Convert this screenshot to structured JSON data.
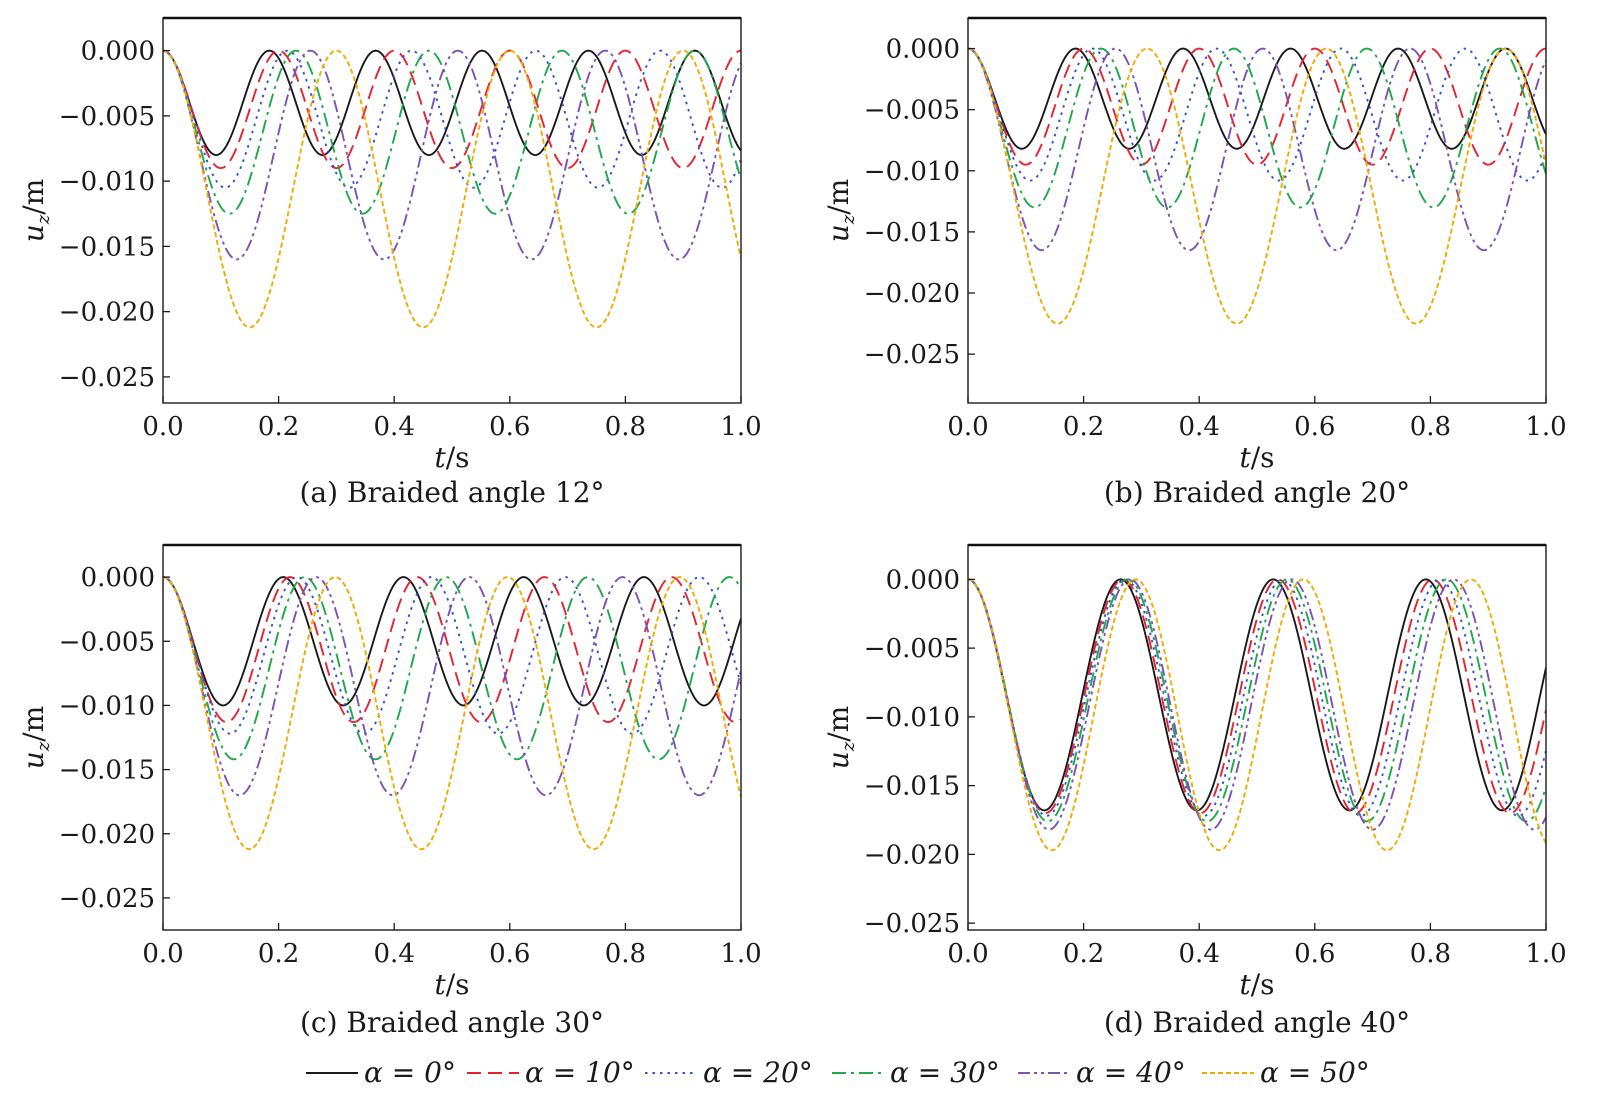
{
  "figure": {
    "legend": {
      "entries": [
        {
          "label": "α = 0°",
          "color": "#1a1a1a",
          "dash": "solid"
        },
        {
          "label": "α = 10°",
          "color": "#e8212f",
          "dash": "dashed"
        },
        {
          "label": "α = 20°",
          "color": "#2f4fd6",
          "dash": "dotted"
        },
        {
          "label": "α = 30°",
          "color": "#1ea84a",
          "dash": "dashdot"
        },
        {
          "label": "α = 40°",
          "color": "#7a52b8",
          "dash": "dashdotdot"
        },
        {
          "label": "α = 50°",
          "color": "#f2a900",
          "dash": "finedash"
        }
      ]
    }
  },
  "chart_data": [
    {
      "type": "line",
      "caption": "(a) Braided angle 12°",
      "xlabel": "t/s",
      "ylabel": "uz/m",
      "ylabel_main": "u",
      "ylabel_sub": "z",
      "ylabel_unit": "/m",
      "xlim": [
        0,
        1
      ],
      "ylim": [
        -0.027,
        0.0025
      ],
      "xticks": [
        "0.0",
        "0.2",
        "0.4",
        "0.6",
        "0.8",
        "1.0"
      ],
      "xtick_values": [
        0,
        0.2,
        0.4,
        0.6,
        0.8,
        1.0
      ],
      "yticks": [
        "0.000",
        "−0.005",
        "−0.010",
        "−0.015",
        "−0.020",
        "−0.025"
      ],
      "ytick_values": [
        0,
        -0.005,
        -0.01,
        -0.015,
        -0.02,
        -0.025
      ],
      "grid": false,
      "series": [
        {
          "name": "α = 0°",
          "amplitude": 0.008,
          "period": 0.184,
          "color": "#1a1a1a"
        },
        {
          "name": "α = 10°",
          "amplitude": 0.009,
          "period": 0.2,
          "color": "#e8212f"
        },
        {
          "name": "α = 20°",
          "amplitude": 0.0105,
          "period": 0.215,
          "color": "#2f4fd6"
        },
        {
          "name": "α = 30°",
          "amplitude": 0.0125,
          "period": 0.23,
          "color": "#1ea84a"
        },
        {
          "name": "α = 40°",
          "amplitude": 0.016,
          "period": 0.255,
          "color": "#7a52b8"
        },
        {
          "name": "α = 50°",
          "amplitude": 0.0212,
          "period": 0.3,
          "color": "#f2a900"
        }
      ]
    },
    {
      "type": "line",
      "caption": "(b) Braided angle 20°",
      "xlabel": "t/s",
      "ylabel": "uz/m",
      "ylabel_main": "u",
      "ylabel_sub": "z",
      "ylabel_unit": "/m",
      "xlim": [
        0,
        1
      ],
      "ylim": [
        -0.029,
        0.0025
      ],
      "xticks": [
        "0.0",
        "0.2",
        "0.4",
        "0.6",
        "0.8",
        "1.0"
      ],
      "xtick_values": [
        0,
        0.2,
        0.4,
        0.6,
        0.8,
        1.0
      ],
      "yticks": [
        "0.000",
        "−0.005",
        "−0.010",
        "−0.015",
        "−0.020",
        "−0.025"
      ],
      "ytick_values": [
        0,
        -0.005,
        -0.01,
        -0.015,
        -0.02,
        -0.025
      ],
      "grid": false,
      "series": [
        {
          "name": "α = 0°",
          "amplitude": 0.0082,
          "period": 0.186,
          "color": "#1a1a1a"
        },
        {
          "name": "α = 10°",
          "amplitude": 0.0095,
          "period": 0.2,
          "color": "#e8212f"
        },
        {
          "name": "α = 20°",
          "amplitude": 0.0108,
          "period": 0.215,
          "color": "#2f4fd6"
        },
        {
          "name": "α = 30°",
          "amplitude": 0.013,
          "period": 0.23,
          "color": "#1ea84a"
        },
        {
          "name": "α = 40°",
          "amplitude": 0.0165,
          "period": 0.255,
          "color": "#7a52b8"
        },
        {
          "name": "α = 50°",
          "amplitude": 0.0225,
          "period": 0.31,
          "color": "#f2a900"
        }
      ]
    },
    {
      "type": "line",
      "caption": "(c) Braided angle 30°",
      "xlabel": "t/s",
      "ylabel": "uz/m",
      "ylabel_main": "u",
      "ylabel_sub": "z",
      "ylabel_unit": "/m",
      "xlim": [
        0,
        1
      ],
      "ylim": [
        -0.0275,
        0.0025
      ],
      "xticks": [
        "0.0",
        "0.2",
        "0.4",
        "0.6",
        "0.8",
        "1.0"
      ],
      "xtick_values": [
        0,
        0.2,
        0.4,
        0.6,
        0.8,
        1.0
      ],
      "yticks": [
        "0.000",
        "−0.005",
        "−0.010",
        "−0.015",
        "−0.020",
        "−0.025"
      ],
      "ytick_values": [
        0,
        -0.005,
        -0.01,
        -0.015,
        -0.02,
        -0.025
      ],
      "grid": false,
      "series": [
        {
          "name": "α = 0°",
          "amplitude": 0.01,
          "period": 0.208,
          "color": "#1a1a1a"
        },
        {
          "name": "α = 10°",
          "amplitude": 0.0113,
          "period": 0.22,
          "color": "#e8212f"
        },
        {
          "name": "α = 20°",
          "amplitude": 0.0122,
          "period": 0.232,
          "color": "#2f4fd6"
        },
        {
          "name": "α = 30°",
          "amplitude": 0.0142,
          "period": 0.245,
          "color": "#1ea84a"
        },
        {
          "name": "α = 40°",
          "amplitude": 0.017,
          "period": 0.265,
          "color": "#7a52b8"
        },
        {
          "name": "α = 50°",
          "amplitude": 0.0212,
          "period": 0.298,
          "color": "#f2a900"
        }
      ]
    },
    {
      "type": "line",
      "caption": "(d) Braided angle 40°",
      "xlabel": "t/s",
      "ylabel": "uz/m",
      "ylabel_main": "u",
      "ylabel_sub": "z",
      "ylabel_unit": "/m",
      "xlim": [
        0,
        1
      ],
      "ylim": [
        -0.0255,
        0.0025
      ],
      "xticks": [
        "0.0",
        "0.2",
        "0.4",
        "0.6",
        "0.8",
        "1.0"
      ],
      "xtick_values": [
        0,
        0.2,
        0.4,
        0.6,
        0.8,
        1.0
      ],
      "yticks": [
        "0.000",
        "−0.005",
        "−0.010",
        "−0.015",
        "−0.020",
        "−0.025"
      ],
      "ytick_values": [
        0,
        -0.005,
        -0.01,
        -0.015,
        -0.02,
        -0.025
      ],
      "grid": false,
      "series": [
        {
          "name": "α = 0°",
          "amplitude": 0.0168,
          "period": 0.264,
          "color": "#1a1a1a"
        },
        {
          "name": "α = 10°",
          "amplitude": 0.017,
          "period": 0.268,
          "color": "#e8212f"
        },
        {
          "name": "α = 20°",
          "amplitude": 0.0172,
          "period": 0.272,
          "color": "#2f4fd6"
        },
        {
          "name": "α = 30°",
          "amplitude": 0.0176,
          "period": 0.276,
          "color": "#1ea84a"
        },
        {
          "name": "α = 40°",
          "amplitude": 0.0182,
          "period": 0.28,
          "color": "#7a52b8"
        },
        {
          "name": "α = 50°",
          "amplitude": 0.0197,
          "period": 0.29,
          "color": "#f2a900"
        }
      ]
    }
  ]
}
